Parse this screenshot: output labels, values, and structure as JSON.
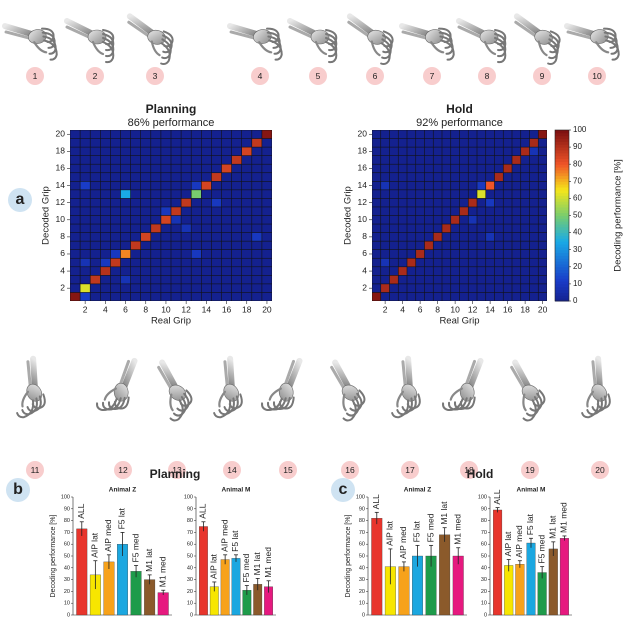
{
  "grip_labels": [
    1,
    2,
    3,
    4,
    5,
    6,
    7,
    8,
    9,
    10,
    11,
    12,
    13,
    14,
    15,
    16,
    17,
    18,
    19,
    20
  ],
  "panels": [
    {
      "letter": "a"
    },
    {
      "letter": "b",
      "title": "Planning"
    },
    {
      "letter": "c",
      "title": "Hold"
    }
  ],
  "chart_data": [
    {
      "type": "heatmap",
      "title": "Planning",
      "subtitle": "86% performance",
      "x_label": "Real Grip",
      "y_label": "Decoded Grip",
      "x": [
        1,
        2,
        3,
        4,
        5,
        6,
        7,
        8,
        9,
        10,
        11,
        12,
        13,
        14,
        15,
        16,
        17,
        18,
        19,
        20
      ],
      "y": [
        1,
        2,
        3,
        4,
        5,
        6,
        7,
        8,
        9,
        10,
        11,
        12,
        13,
        14,
        15,
        16,
        17,
        18,
        19,
        20
      ],
      "xlim": [
        0.5,
        20.5
      ],
      "ylim": [
        0.5,
        20.5
      ],
      "xticks": [
        2,
        4,
        6,
        8,
        10,
        12,
        14,
        16,
        18,
        20
      ],
      "yticks": [
        2,
        4,
        6,
        8,
        10,
        12,
        14,
        16,
        18,
        20
      ],
      "zlim": [
        0,
        100
      ],
      "z": [
        [
          98,
          12,
          0,
          0,
          0,
          0,
          0,
          0,
          0,
          0,
          0,
          0,
          0,
          0,
          0,
          0,
          0,
          0,
          0,
          0
        ],
        [
          0,
          62,
          0,
          0,
          0,
          0,
          0,
          0,
          0,
          0,
          0,
          0,
          0,
          0,
          0,
          0,
          0,
          0,
          0,
          0
        ],
        [
          0,
          0,
          88,
          0,
          0,
          8,
          0,
          0,
          0,
          0,
          0,
          0,
          0,
          0,
          0,
          0,
          0,
          0,
          0,
          0
        ],
        [
          0,
          0,
          0,
          90,
          0,
          0,
          0,
          0,
          0,
          0,
          0,
          0,
          0,
          0,
          0,
          0,
          0,
          0,
          0,
          0
        ],
        [
          0,
          8,
          0,
          10,
          88,
          0,
          0,
          0,
          0,
          0,
          0,
          0,
          0,
          0,
          0,
          0,
          0,
          0,
          0,
          0
        ],
        [
          0,
          0,
          0,
          0,
          10,
          75,
          0,
          0,
          0,
          0,
          0,
          0,
          10,
          0,
          0,
          0,
          0,
          0,
          0,
          0
        ],
        [
          0,
          0,
          0,
          0,
          0,
          0,
          88,
          0,
          0,
          0,
          0,
          0,
          0,
          0,
          0,
          0,
          0,
          0,
          0,
          0
        ],
        [
          0,
          0,
          0,
          0,
          0,
          0,
          0,
          85,
          0,
          0,
          0,
          0,
          0,
          0,
          0,
          0,
          0,
          0,
          10,
          0
        ],
        [
          0,
          0,
          0,
          0,
          0,
          0,
          0,
          0,
          88,
          0,
          0,
          8,
          0,
          0,
          0,
          0,
          0,
          0,
          0,
          0
        ],
        [
          0,
          0,
          0,
          0,
          0,
          0,
          0,
          0,
          0,
          85,
          8,
          0,
          0,
          0,
          0,
          0,
          0,
          0,
          0,
          0
        ],
        [
          0,
          0,
          0,
          0,
          0,
          0,
          0,
          0,
          0,
          10,
          88,
          0,
          0,
          0,
          0,
          0,
          0,
          0,
          0,
          0
        ],
        [
          0,
          0,
          0,
          0,
          0,
          0,
          0,
          0,
          0,
          0,
          0,
          88,
          0,
          0,
          10,
          0,
          0,
          0,
          0,
          0
        ],
        [
          0,
          0,
          0,
          0,
          0,
          35,
          0,
          0,
          0,
          0,
          0,
          0,
          50,
          0,
          0,
          0,
          0,
          0,
          0,
          0
        ],
        [
          0,
          12,
          0,
          0,
          0,
          0,
          0,
          0,
          0,
          0,
          0,
          0,
          10,
          85,
          0,
          0,
          0,
          0,
          0,
          0
        ],
        [
          0,
          0,
          0,
          0,
          0,
          0,
          0,
          0,
          0,
          0,
          0,
          0,
          0,
          0,
          88,
          0,
          0,
          0,
          0,
          0
        ],
        [
          0,
          0,
          0,
          0,
          0,
          0,
          0,
          0,
          0,
          0,
          0,
          0,
          0,
          0,
          0,
          85,
          0,
          0,
          0,
          0
        ],
        [
          0,
          0,
          0,
          0,
          0,
          0,
          0,
          0,
          0,
          0,
          0,
          0,
          0,
          0,
          0,
          0,
          88,
          0,
          0,
          0
        ],
        [
          0,
          0,
          0,
          0,
          0,
          0,
          0,
          0,
          0,
          0,
          0,
          0,
          0,
          0,
          0,
          0,
          0,
          85,
          0,
          0
        ],
        [
          0,
          0,
          0,
          0,
          0,
          0,
          0,
          0,
          0,
          0,
          0,
          0,
          0,
          0,
          0,
          0,
          0,
          0,
          88,
          0
        ],
        [
          0,
          0,
          0,
          0,
          0,
          0,
          0,
          0,
          0,
          0,
          0,
          0,
          0,
          0,
          0,
          0,
          0,
          0,
          0,
          98
        ]
      ]
    },
    {
      "type": "heatmap",
      "title": "Hold",
      "subtitle": "92% performance",
      "x_label": "Real Grip",
      "y_label": "Decoded Grip",
      "x": [
        1,
        2,
        3,
        4,
        5,
        6,
        7,
        8,
        9,
        10,
        11,
        12,
        13,
        14,
        15,
        16,
        17,
        18,
        19,
        20
      ],
      "y": [
        1,
        2,
        3,
        4,
        5,
        6,
        7,
        8,
        9,
        10,
        11,
        12,
        13,
        14,
        15,
        16,
        17,
        18,
        19,
        20
      ],
      "xlim": [
        0.5,
        20.5
      ],
      "ylim": [
        0.5,
        20.5
      ],
      "xticks": [
        2,
        4,
        6,
        8,
        10,
        12,
        14,
        16,
        18,
        20
      ],
      "yticks": [
        2,
        4,
        6,
        8,
        10,
        12,
        14,
        16,
        18,
        20
      ],
      "zlim": [
        0,
        100
      ],
      "colorbar": {
        "label": "Decoding performance [%]",
        "ticks": [
          0,
          10,
          20,
          30,
          40,
          50,
          60,
          70,
          80,
          90,
          100
        ]
      },
      "z": [
        [
          98,
          0,
          0,
          0,
          0,
          0,
          0,
          0,
          0,
          0,
          0,
          0,
          0,
          0,
          0,
          0,
          0,
          0,
          0,
          0
        ],
        [
          0,
          92,
          0,
          0,
          0,
          0,
          0,
          0,
          0,
          0,
          0,
          0,
          0,
          0,
          0,
          0,
          0,
          0,
          0,
          0
        ],
        [
          0,
          0,
          92,
          0,
          0,
          0,
          0,
          0,
          0,
          0,
          0,
          0,
          0,
          0,
          0,
          0,
          0,
          0,
          0,
          0
        ],
        [
          0,
          0,
          0,
          92,
          0,
          0,
          0,
          0,
          0,
          0,
          0,
          0,
          0,
          0,
          0,
          0,
          0,
          0,
          0,
          0
        ],
        [
          0,
          8,
          0,
          0,
          92,
          0,
          0,
          0,
          0,
          0,
          0,
          0,
          0,
          0,
          0,
          0,
          0,
          0,
          0,
          0
        ],
        [
          0,
          0,
          0,
          0,
          0,
          92,
          0,
          0,
          0,
          0,
          0,
          0,
          0,
          0,
          0,
          0,
          0,
          0,
          0,
          0
        ],
        [
          0,
          0,
          0,
          0,
          0,
          0,
          92,
          0,
          0,
          0,
          0,
          0,
          0,
          0,
          0,
          0,
          0,
          0,
          0,
          0
        ],
        [
          0,
          0,
          0,
          0,
          0,
          0,
          0,
          92,
          0,
          0,
          0,
          0,
          0,
          8,
          0,
          0,
          0,
          0,
          0,
          0
        ],
        [
          0,
          0,
          0,
          0,
          0,
          0,
          0,
          0,
          92,
          0,
          0,
          0,
          0,
          0,
          0,
          0,
          0,
          0,
          0,
          0
        ],
        [
          0,
          0,
          0,
          0,
          0,
          0,
          0,
          0,
          0,
          92,
          0,
          8,
          0,
          0,
          0,
          0,
          0,
          0,
          0,
          0
        ],
        [
          0,
          0,
          0,
          0,
          0,
          0,
          0,
          0,
          0,
          0,
          92,
          0,
          0,
          0,
          0,
          0,
          0,
          0,
          0,
          0
        ],
        [
          0,
          0,
          0,
          0,
          0,
          0,
          0,
          0,
          0,
          0,
          0,
          92,
          0,
          10,
          0,
          0,
          0,
          0,
          0,
          0
        ],
        [
          0,
          0,
          0,
          0,
          0,
          0,
          0,
          0,
          0,
          0,
          0,
          0,
          62,
          0,
          0,
          0,
          0,
          0,
          0,
          0
        ],
        [
          0,
          8,
          0,
          0,
          0,
          0,
          0,
          0,
          0,
          0,
          0,
          0,
          10,
          80,
          0,
          0,
          0,
          0,
          0,
          0
        ],
        [
          0,
          0,
          0,
          0,
          0,
          0,
          0,
          0,
          0,
          0,
          0,
          0,
          0,
          0,
          92,
          0,
          0,
          0,
          0,
          0
        ],
        [
          0,
          0,
          0,
          0,
          0,
          0,
          0,
          0,
          0,
          0,
          0,
          0,
          0,
          0,
          0,
          92,
          0,
          0,
          0,
          0
        ],
        [
          0,
          0,
          0,
          0,
          0,
          0,
          0,
          0,
          0,
          0,
          0,
          0,
          0,
          0,
          0,
          0,
          92,
          0,
          0,
          0
        ],
        [
          0,
          0,
          0,
          0,
          0,
          0,
          0,
          0,
          0,
          0,
          0,
          0,
          0,
          0,
          0,
          0,
          0,
          92,
          8,
          0
        ],
        [
          0,
          0,
          0,
          0,
          0,
          0,
          0,
          0,
          0,
          0,
          0,
          0,
          0,
          0,
          0,
          0,
          0,
          0,
          92,
          0
        ],
        [
          0,
          0,
          0,
          0,
          0,
          0,
          0,
          0,
          0,
          0,
          0,
          0,
          0,
          0,
          0,
          0,
          0,
          0,
          0,
          98
        ]
      ]
    },
    {
      "type": "bar",
      "title": "Animal Z",
      "y_label": "Decoding performance [%]",
      "categories": [
        "ALL",
        "AIP lat",
        "AIP med",
        "F5 lat",
        "F5 med",
        "M1 lat",
        "M1 med"
      ],
      "values": [
        73,
        34,
        45,
        60,
        37,
        30,
        19
      ],
      "errors": [
        6,
        12,
        6,
        10,
        5,
        4,
        2
      ],
      "colors": [
        "#e8352c",
        "#f7e600",
        "#f7a21b",
        "#1ba7e0",
        "#1e9b4a",
        "#8b5a2b",
        "#e6197f"
      ],
      "ylim": [
        0,
        100
      ],
      "yticks": [
        0,
        10,
        20,
        30,
        40,
        50,
        60,
        70,
        80,
        90,
        100
      ]
    },
    {
      "type": "bar",
      "title": "Animal M",
      "categories": [
        "ALL",
        "AIP lat",
        "AIP med",
        "F5 lat",
        "F5 med",
        "M1 lat",
        "M1 med"
      ],
      "values": [
        75,
        24,
        47,
        48,
        21,
        26,
        24
      ],
      "errors": [
        4,
        4,
        4,
        3,
        4,
        5,
        5
      ],
      "colors": [
        "#e8352c",
        "#f7e600",
        "#f7a21b",
        "#1ba7e0",
        "#1e9b4a",
        "#8b5a2b",
        "#e6197f"
      ],
      "ylim": [
        0,
        100
      ],
      "yticks": [
        0,
        10,
        20,
        30,
        40,
        50,
        60,
        70,
        80,
        90,
        100
      ]
    },
    {
      "type": "bar",
      "title": "Animal Z",
      "y_label": "Decoding performance [%]",
      "categories": [
        "ALL",
        "AIP lat",
        "AIP med",
        "F5 lat",
        "F5 med",
        "M1 lat",
        "M1 med"
      ],
      "values": [
        82,
        41,
        41,
        50,
        50,
        68,
        50
      ],
      "errors": [
        5,
        15,
        4,
        9,
        9,
        6,
        7
      ],
      "colors": [
        "#e8352c",
        "#f7e600",
        "#f7a21b",
        "#1ba7e0",
        "#1e9b4a",
        "#8b5a2b",
        "#e6197f"
      ],
      "ylim": [
        0,
        100
      ],
      "yticks": [
        0,
        10,
        20,
        30,
        40,
        50,
        60,
        70,
        80,
        90,
        100
      ]
    },
    {
      "type": "bar",
      "title": "Animal M",
      "categories": [
        "ALL",
        "AIP lat",
        "AIP med",
        "F5 lat",
        "F5 med",
        "M1 lat",
        "M1 med"
      ],
      "values": [
        89,
        42,
        43,
        61,
        36,
        56,
        65
      ],
      "errors": [
        2,
        5,
        3,
        4,
        5,
        6,
        2
      ],
      "colors": [
        "#e8352c",
        "#f7e600",
        "#f7a21b",
        "#1ba7e0",
        "#1e9b4a",
        "#8b5a2b",
        "#e6197f"
      ],
      "ylim": [
        0,
        100
      ],
      "yticks": [
        0,
        10,
        20,
        30,
        40,
        50,
        60,
        70,
        80,
        90,
        100
      ]
    }
  ]
}
